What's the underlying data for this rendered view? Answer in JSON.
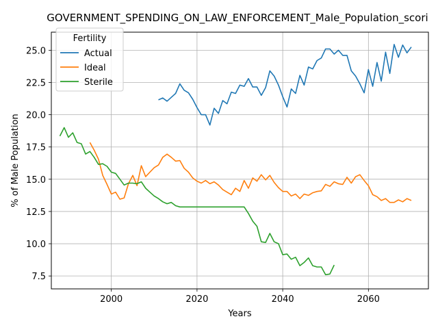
{
  "chart_data": {
    "type": "line",
    "title": "GOVERNMENT_SPENDING_ON_LAW_ENFORCEMENT_Male_Population_scori",
    "xlabel": "Years",
    "ylabel": "% of Male Population",
    "xlim": [
      1986,
      2074
    ],
    "ylim": [
      6.5,
      26.4
    ],
    "xticks": [
      2000,
      2020,
      2040,
      2060
    ],
    "yticks": [
      7.5,
      10.0,
      12.5,
      15.0,
      17.5,
      20.0,
      22.5,
      25.0
    ],
    "xtick_labels": [
      "2000",
      "2020",
      "2040",
      "2060"
    ],
    "ytick_labels": [
      "7.5",
      "10.0",
      "12.5",
      "15.0",
      "17.5",
      "20.0",
      "22.5",
      "25.0"
    ],
    "grid": true,
    "legend": {
      "title": "Fertility",
      "placement": "top-left"
    },
    "series": [
      {
        "name": "Actual",
        "color": "#1f77b4",
        "x": [
          2011,
          2012,
          2013,
          2014,
          2015,
          2016,
          2017,
          2018,
          2019,
          2020,
          2021,
          2022,
          2023,
          2024,
          2025,
          2026,
          2027,
          2028,
          2029,
          2030,
          2031,
          2032,
          2033,
          2034,
          2035,
          2036,
          2037,
          2038,
          2039,
          2040,
          2041,
          2042,
          2043,
          2044,
          2045,
          2046,
          2047,
          2048,
          2049,
          2050,
          2051,
          2052,
          2053,
          2054,
          2055,
          2056,
          2057,
          2058,
          2059,
          2060,
          2061,
          2062,
          2063,
          2064,
          2065,
          2066,
          2067,
          2068,
          2069,
          2070
        ],
        "y": [
          21.15,
          21.3,
          21.05,
          21.35,
          21.65,
          22.4,
          21.9,
          21.7,
          21.2,
          20.55,
          20.0,
          20.0,
          19.2,
          20.5,
          20.1,
          21.1,
          20.85,
          21.75,
          21.65,
          22.3,
          22.2,
          22.8,
          22.15,
          22.15,
          21.5,
          22.1,
          23.4,
          23.0,
          22.3,
          21.4,
          20.6,
          22.0,
          21.65,
          23.05,
          22.3,
          23.7,
          23.55,
          24.2,
          24.4,
          25.1,
          25.1,
          24.7,
          25.0,
          24.6,
          24.6,
          23.4,
          23.0,
          22.4,
          21.7,
          23.5,
          22.2,
          24.05,
          22.6,
          24.85,
          23.2,
          25.45,
          24.45,
          25.4,
          24.8,
          25.25
        ]
      },
      {
        "name": "Ideal",
        "color": "#ff7f0e",
        "x": [
          1995,
          1996,
          1997,
          1998,
          1999,
          2000,
          2001,
          2002,
          2003,
          2004,
          2005,
          2006,
          2007,
          2008,
          2009,
          2010,
          2011,
          2012,
          2013,
          2014,
          2015,
          2016,
          2017,
          2018,
          2019,
          2020,
          2021,
          2022,
          2023,
          2024,
          2025,
          2026,
          2027,
          2028,
          2029,
          2030,
          2031,
          2032,
          2033,
          2034,
          2035,
          2036,
          2037,
          2038,
          2039,
          2040,
          2041,
          2042,
          2043,
          2044,
          2045,
          2046,
          2047,
          2048,
          2049,
          2050,
          2051,
          2052,
          2053,
          2054,
          2055,
          2056,
          2057,
          2058,
          2059,
          2060,
          2061,
          2062,
          2063,
          2064,
          2065,
          2066,
          2067,
          2068,
          2069,
          2070
        ],
        "y": [
          17.85,
          17.25,
          16.55,
          15.3,
          14.6,
          13.85,
          14.0,
          13.45,
          13.55,
          14.65,
          15.3,
          14.5,
          16.05,
          15.2,
          15.55,
          15.9,
          16.1,
          16.7,
          16.95,
          16.7,
          16.4,
          16.45,
          15.85,
          15.55,
          15.1,
          14.85,
          14.7,
          14.9,
          14.65,
          14.8,
          14.55,
          14.2,
          14.0,
          13.8,
          14.3,
          14.05,
          14.9,
          14.3,
          15.1,
          14.85,
          15.35,
          14.95,
          15.3,
          14.75,
          14.35,
          14.05,
          14.05,
          13.7,
          13.85,
          13.5,
          13.85,
          13.75,
          13.95,
          14.05,
          14.1,
          14.6,
          14.45,
          14.8,
          14.65,
          14.6,
          15.15,
          14.7,
          15.2,
          15.35,
          14.9,
          14.5,
          13.8,
          13.65,
          13.35,
          13.5,
          13.2,
          13.2,
          13.4,
          13.25,
          13.5,
          13.35
        ]
      },
      {
        "name": "Sterile",
        "color": "#2ca02c",
        "x": [
          1988,
          1989,
          1990,
          1991,
          1992,
          1993,
          1994,
          1995,
          1996,
          1997,
          1998,
          1999,
          2000,
          2001,
          2002,
          2003,
          2004,
          2005,
          2006,
          2007,
          2008,
          2009,
          2010,
          2011,
          2012,
          2013,
          2014,
          2015,
          2016,
          2017,
          2018,
          2019,
          2020,
          2021,
          2022,
          2023,
          2024,
          2025,
          2026,
          2027,
          2028,
          2029,
          2030,
          2031,
          2032,
          2033,
          2034,
          2035,
          2036,
          2037,
          2038,
          2039,
          2040,
          2041,
          2042,
          2043,
          2044,
          2045,
          2046,
          2047,
          2048,
          2049,
          2050,
          2051,
          2052
        ],
        "y": [
          18.35,
          19.0,
          18.25,
          18.6,
          17.85,
          17.75,
          16.95,
          17.15,
          16.7,
          16.15,
          16.2,
          16.0,
          15.55,
          15.45,
          15.0,
          14.55,
          14.7,
          14.7,
          14.65,
          14.8,
          14.3,
          14.0,
          13.7,
          13.5,
          13.25,
          13.1,
          13.2,
          12.95,
          12.85,
          12.85,
          12.85,
          12.85,
          12.85,
          12.85,
          12.85,
          12.85,
          12.85,
          12.85,
          12.85,
          12.85,
          12.85,
          12.85,
          12.85,
          12.85,
          12.35,
          11.75,
          11.35,
          10.15,
          10.1,
          10.8,
          10.15,
          10.0,
          9.15,
          9.2,
          8.8,
          8.95,
          8.3,
          8.55,
          8.9,
          8.3,
          8.2,
          8.2,
          7.6,
          7.65,
          8.35
        ]
      }
    ]
  }
}
